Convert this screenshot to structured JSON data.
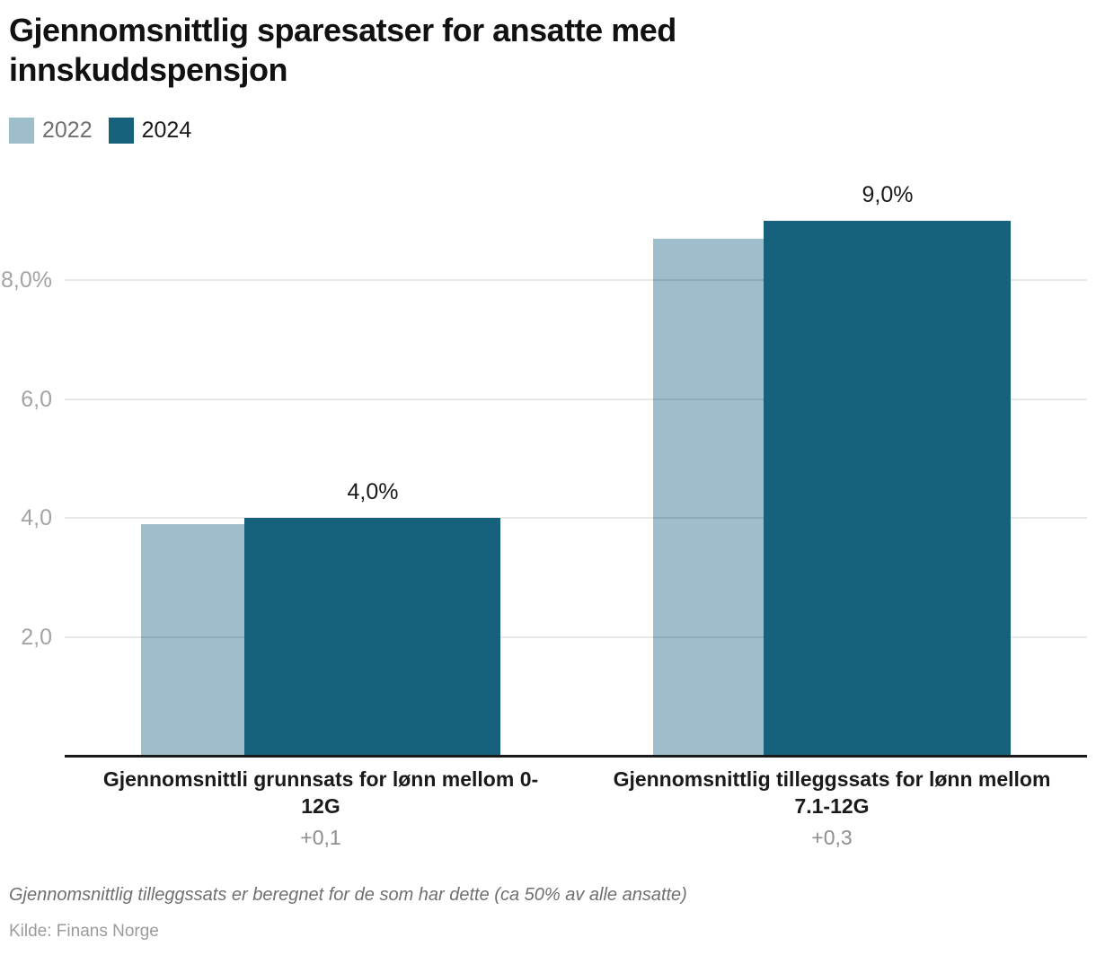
{
  "header": {
    "title": "Gjennomsnittlig sparesatser for ansatte med\ninnskuddspensjon"
  },
  "legend": [
    {
      "label": "2022",
      "color": "#9dbeca",
      "text_color": "#6f6f6f"
    },
    {
      "label": "2024",
      "color": "#16617c",
      "text_color": "#1a1a1a"
    }
  ],
  "chart_data": {
    "type": "bar",
    "title": "Gjennomsnittlig sparesatser for ansatte med innskuddspensjon",
    "categories": [
      "Gjennomsnittli grunnsats for lønn mellom 0-\n12G",
      "Gjennomsnittlig tilleggssats for lønn mellom\n7.1-12G"
    ],
    "series": [
      {
        "name": "2022",
        "values": [
          3.9,
          8.7
        ],
        "color": "#9dbeca"
      },
      {
        "name": "2024",
        "values": [
          4.0,
          9.0
        ],
        "color": "#16617c"
      }
    ],
    "value_labels": [
      "4,0%",
      "9,0%"
    ],
    "delta_labels": [
      "+0,1",
      "+0,3"
    ],
    "yticks": [
      {
        "value": 2,
        "label": "2,0"
      },
      {
        "value": 4,
        "label": "4,0"
      },
      {
        "value": 6,
        "label": "6,0"
      },
      {
        "value": 8,
        "label": "8,0%"
      }
    ],
    "unit": "%",
    "xlabel": "",
    "ylabel": "",
    "ylim": [
      0,
      9.3
    ],
    "grid": "on",
    "legend_position": "top-left"
  },
  "footnote": "Gjennomsnittlig tilleggssats er beregnet for de som har dette (ca 50% av alle ansatte)",
  "source": "Kilde: Finans Norge"
}
